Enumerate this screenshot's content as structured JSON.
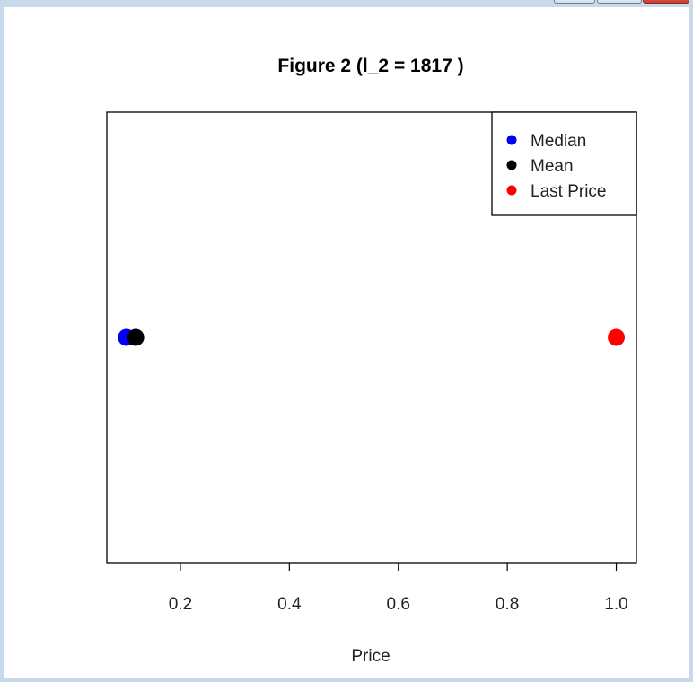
{
  "chart_data": {
    "type": "scatter",
    "title": "Figure 2 (l_2 = 1817 )",
    "xlabel": "Price",
    "ylabel": "",
    "xlim": [
      0.065,
      1.037
    ],
    "ylim": [
      0,
      2
    ],
    "x_ticks": [
      0.2,
      0.4,
      0.6,
      0.8,
      1.0
    ],
    "x_tick_labels": [
      "0.2",
      "0.4",
      "0.6",
      "0.8",
      "1.0"
    ],
    "y_axis_shown": false,
    "grid": false,
    "legend_position": "top-right",
    "series": [
      {
        "name": "Median",
        "color": "#0000ff",
        "x": [
          0.101
        ],
        "y": [
          1
        ]
      },
      {
        "name": "Mean",
        "color": "#000000",
        "x": [
          0.118
        ],
        "y": [
          1
        ]
      },
      {
        "name": "Last Price",
        "color": "#ff0000",
        "x": [
          1.0
        ],
        "y": [
          1
        ]
      }
    ]
  }
}
